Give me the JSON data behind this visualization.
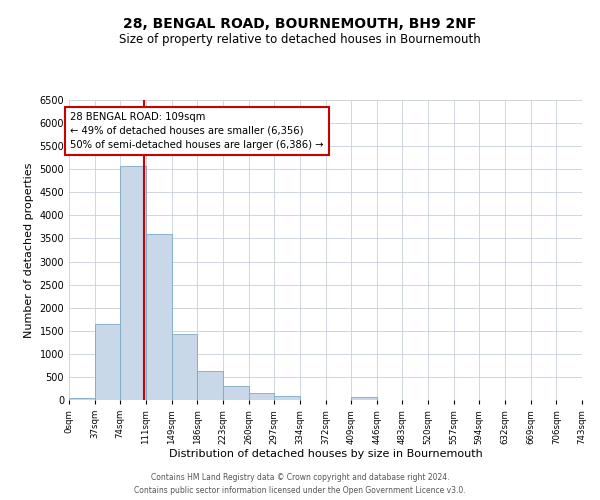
{
  "title": "28, BENGAL ROAD, BOURNEMOUTH, BH9 2NF",
  "subtitle": "Size of property relative to detached houses in Bournemouth",
  "xlabel": "Distribution of detached houses by size in Bournemouth",
  "ylabel": "Number of detached properties",
  "bar_edges": [
    0,
    37,
    74,
    111,
    149,
    186,
    223,
    260,
    297,
    334,
    372,
    409,
    446,
    483,
    520,
    557,
    594,
    632,
    669,
    706,
    743
  ],
  "bar_heights": [
    50,
    1650,
    5080,
    3600,
    1420,
    620,
    310,
    150,
    90,
    0,
    0,
    60,
    0,
    0,
    0,
    0,
    0,
    0,
    0,
    0
  ],
  "bar_color": "#c8d8e8",
  "bar_edgecolor": "#7aa8c8",
  "vline_x": 109,
  "vline_color": "#cc0000",
  "ylim": [
    0,
    6500
  ],
  "yticks": [
    0,
    500,
    1000,
    1500,
    2000,
    2500,
    3000,
    3500,
    4000,
    4500,
    5000,
    5500,
    6000,
    6500
  ],
  "xtick_labels": [
    "0sqm",
    "37sqm",
    "74sqm",
    "111sqm",
    "149sqm",
    "186sqm",
    "223sqm",
    "260sqm",
    "297sqm",
    "334sqm",
    "372sqm",
    "409sqm",
    "446sqm",
    "483sqm",
    "520sqm",
    "557sqm",
    "594sqm",
    "632sqm",
    "669sqm",
    "706sqm",
    "743sqm"
  ],
  "annotation_title": "28 BENGAL ROAD: 109sqm",
  "annotation_line1": "← 49% of detached houses are smaller (6,356)",
  "annotation_line2": "50% of semi-detached houses are larger (6,386) →",
  "annotation_box_color": "#ffffff",
  "annotation_box_edgecolor": "#cc0000",
  "footer_line1": "Contains HM Land Registry data © Crown copyright and database right 2024.",
  "footer_line2": "Contains public sector information licensed under the Open Government Licence v3.0.",
  "background_color": "#ffffff",
  "grid_color": "#c8d0d8",
  "title_fontsize": 10,
  "subtitle_fontsize": 8.5
}
